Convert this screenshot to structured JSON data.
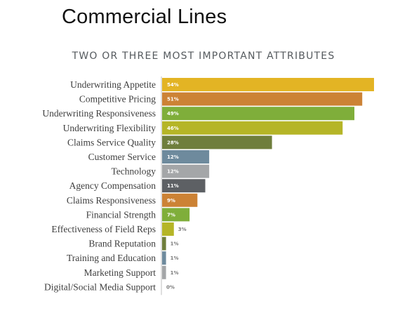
{
  "slide": {
    "title": "Commercial Lines"
  },
  "chart_data": {
    "type": "bar",
    "orientation": "horizontal",
    "title": "TWO OR THREE MOST IMPORTANT ATTRIBUTES",
    "xlabel": "",
    "ylabel": "",
    "xlim": [
      0,
      54
    ],
    "grid": false,
    "value_suffix": "%",
    "categories": [
      "Underwriting Appetite",
      "Competitive Pricing",
      "Underwriting Responsiveness",
      "Underwriting Flexibility",
      "Claims Service Quality",
      "Customer Service",
      "Technology",
      "Agency Compensation",
      "Claims Responsiveness",
      "Financial Strength",
      "Effectiveness of Field Reps",
      "Brand Reputation",
      "Training and Education",
      "Marketing Support",
      "Digital/Social Media Support"
    ],
    "values": [
      54,
      51,
      49,
      46,
      28,
      12,
      12,
      11,
      9,
      7,
      3,
      1,
      1,
      1,
      0
    ],
    "colors": [
      "#e3b424",
      "#cc8235",
      "#7fae3a",
      "#b5b527",
      "#6f7e3c",
      "#6e8a9d",
      "#a4a6a8",
      "#5d6064",
      "#cc8235",
      "#7fae3a",
      "#b5b527",
      "#6f7e3c",
      "#6e8a9d",
      "#a4a6a8",
      "#5d6064"
    ]
  }
}
